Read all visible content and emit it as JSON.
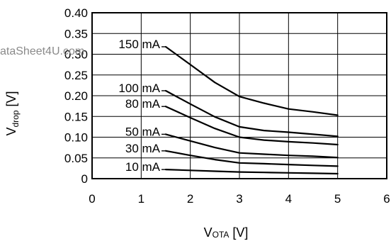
{
  "watermark": "ataSheet4U.com",
  "chart_data": {
    "type": "line",
    "title": "",
    "xlabel": {
      "main": "V",
      "sub": "OTA",
      "unit": " [V]"
    },
    "ylabel": {
      "main": "V",
      "sub": "drop",
      "unit": " [V]"
    },
    "xlim": [
      0,
      6
    ],
    "ylim": [
      0,
      0.4
    ],
    "grid": true,
    "x_ticks": [
      "0",
      "1",
      "2",
      "3",
      "4",
      "5",
      "6"
    ],
    "y_ticks": [
      "0",
      "0.05",
      "0.10",
      "0.15",
      "0.20",
      "0.25",
      "0.30",
      "0.35",
      "0.40"
    ],
    "series": [
      {
        "name": "150 mA",
        "x": [
          1.5,
          2,
          2.5,
          3,
          3.5,
          4,
          4.5,
          5
        ],
        "values": [
          0.318,
          0.275,
          0.232,
          0.198,
          0.182,
          0.168,
          0.161,
          0.153
        ]
      },
      {
        "name": "100 mA",
        "x": [
          1.5,
          2,
          2.5,
          3,
          3.5,
          4,
          4.5,
          5
        ],
        "values": [
          0.212,
          0.18,
          0.149,
          0.125,
          0.116,
          0.112,
          0.107,
          0.102
        ]
      },
      {
        "name": "80 mA",
        "x": [
          1.5,
          2,
          2.5,
          3,
          3.5,
          4,
          4.5,
          5
        ],
        "values": [
          0.174,
          0.147,
          0.121,
          0.1,
          0.093,
          0.089,
          0.086,
          0.082
        ]
      },
      {
        "name": "50 mA",
        "x": [
          1.5,
          2,
          2.5,
          3,
          3.5,
          4,
          4.5,
          5
        ],
        "values": [
          0.107,
          0.091,
          0.075,
          0.062,
          0.059,
          0.056,
          0.054,
          0.051
        ]
      },
      {
        "name": "30 mA",
        "x": [
          1.5,
          2,
          2.5,
          3,
          3.5,
          4,
          4.5,
          5
        ],
        "values": [
          0.067,
          0.056,
          0.046,
          0.038,
          0.036,
          0.034,
          0.032,
          0.03
        ]
      },
      {
        "name": "10 mA",
        "x": [
          1.5,
          2,
          2.5,
          3,
          3.5,
          4,
          4.5,
          5
        ],
        "values": [
          0.022,
          0.02,
          0.018,
          0.016,
          0.015,
          0.014,
          0.013,
          0.012
        ]
      }
    ]
  }
}
